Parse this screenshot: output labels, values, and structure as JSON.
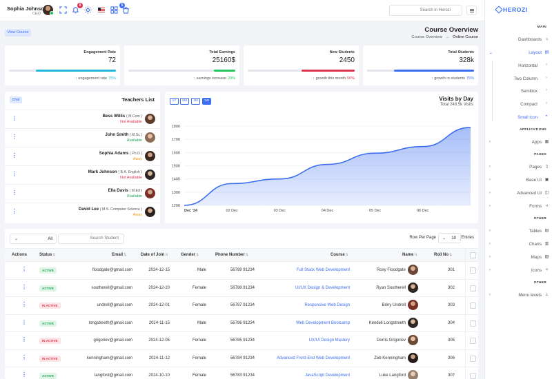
{
  "header": {
    "user_name": "Sophia Johnson",
    "user_role": "CEO",
    "notification_count": "8",
    "cart_count": "5",
    "search_placeholder": "Search in Herozi"
  },
  "sidebar": {
    "brand": "HEROZI",
    "sections": {
      "main": "MAIN",
      "applications": "APPLICATIONS",
      "pages": "PAGES",
      "other1": "OTHER",
      "other2": "OTHER"
    },
    "items": {
      "dashboards": "Dashboards",
      "layout": "Layout",
      "horizontal": "Horizontal",
      "two_column": "Two Column",
      "semibox": "Semibox",
      "compact": "Compact",
      "small_icon": "Small Icon",
      "apps": "Apps",
      "pages": "Pages",
      "base_ui": "Base UI",
      "advanced_ui": "Advanced UI",
      "forms": "Forms",
      "tables": "Tables",
      "charts": "Charts",
      "maps": "Maps",
      "icons": "Icons",
      "menu_levels": "Menu levels"
    }
  },
  "page": {
    "view_course_label": "View Course",
    "title": "Course Overview",
    "breadcrumb_parent": "Course Overview",
    "breadcrumb_separator": "→",
    "breadcrumb_current": "Online Course"
  },
  "stats": [
    {
      "label": "Engagement Rate",
      "value": "72",
      "note": "engagement rate",
      "pct": "75%",
      "color": "#22b8d9",
      "progress": 0.75
    },
    {
      "label": "Total Earnings",
      "value": "25160$",
      "note": "earnings increase",
      "pct": "20%",
      "color": "#22c55e",
      "progress": 0.2
    },
    {
      "label": "New Students",
      "value": "2450",
      "note": "growth this month",
      "pct": "50%",
      "color": "#e0344f",
      "progress": 0.5
    },
    {
      "label": "Total Students",
      "value": "328k",
      "note": "growth in students",
      "pct": "75%",
      "color": "#3a6df0",
      "progress": 0.75
    }
  ],
  "teachers": {
    "chat_label": "Chat",
    "title": "Teachers List",
    "list": [
      {
        "name": "Bess Willis",
        "degree": "( M.Com )",
        "status": "Not Available",
        "status_color": "#e0344f"
      },
      {
        "name": "John Smith",
        "degree": "( M.Sc )",
        "status": "Available",
        "status_color": "#22a05a"
      },
      {
        "name": "Sophia Adams",
        "degree": "( Ph.D )",
        "status": "Away",
        "status_color": "#e79c1a"
      },
      {
        "name": "Mark Johnson",
        "degree": "( B.A. English )",
        "status": "Not Available",
        "status_color": "#e0344f"
      },
      {
        "name": "Ella Davis",
        "degree": "( M.Ed )",
        "status": "Available",
        "status_color": "#22a05a"
      },
      {
        "name": "David Lee",
        "degree": "( M.S. Computer Science )",
        "status": "Away",
        "status_color": "#e79c1a"
      }
    ]
  },
  "visits": {
    "title": "Visits by Day",
    "subtitle": "Total 248.5k Visits",
    "ranges": [
      "1Y",
      "6M",
      "1M",
      "1W"
    ],
    "active_range": "1W"
  },
  "chart_data": {
    "type": "area",
    "title": "Visits by Day",
    "subtitle": "Total 248.5k Visits",
    "x": [
      "Dec '24",
      "02 Dec",
      "03 Dec",
      "04 Dec",
      "05 Dec",
      "06 Dec",
      "07 Dec"
    ],
    "series": [
      {
        "name": "Visits",
        "values": [
          1200,
          1365,
          1400,
          1510,
          1595,
          1645,
          1790
        ]
      }
    ],
    "yticks": [
      1200,
      1300,
      1400,
      1500,
      1600,
      1700,
      1800
    ],
    "ylim": [
      1200,
      1800
    ],
    "color": "#3a6df0"
  },
  "students_table": {
    "filter_value": "All",
    "search_placeholder": "Search Student",
    "rows_per_page_label": "Row Per Page",
    "rows_per_page_value": "10",
    "entries_label": "Entries",
    "columns": [
      "Actions",
      "Status",
      "Email",
      "Date of Join",
      "Gender",
      "Phone Number",
      "Course",
      "Name",
      "Roll No"
    ],
    "rows": [
      {
        "status": "ACTIVE",
        "email": "floodgate@gmail.com",
        "date": "2024-12-15",
        "gender": "Male",
        "phone": "56789 91234",
        "course": "Full Stack Web Development",
        "name": "Roxy Floodgate",
        "roll": "301"
      },
      {
        "status": "ACTIVE",
        "email": "southerell@gmail.com",
        "date": "2024-12-20",
        "gender": "Female",
        "phone": "56788 91234",
        "course": "UI/UX Design & Development",
        "name": "Ryan Southerell",
        "roll": "302"
      },
      {
        "status": "IN ACTIVE",
        "email": "undrell@gmail.com",
        "date": "2024-12-01",
        "gender": "Female",
        "phone": "56787 91234",
        "course": "Responsive Web Design",
        "name": "Briny Undrell",
        "roll": "303"
      },
      {
        "status": "ACTIVE",
        "email": "longstreeth@gmail.com",
        "date": "2024-11-15",
        "gender": "Male",
        "phone": "56786 91234",
        "course": "Web Development Bootcamp",
        "name": "Kendell Longstreeth",
        "roll": "304"
      },
      {
        "status": "IN ACTIVE",
        "email": "grigoriev@gmail.com",
        "date": "2024-12-05",
        "gender": "Female",
        "phone": "56785 91234",
        "course": "UX/UI Design Mastery",
        "name": "Dorris Grigoriev",
        "roll": "305"
      },
      {
        "status": "IN ACTIVE",
        "email": "kenningham@gmail.com",
        "date": "2024-11-12",
        "gender": "Female",
        "phone": "56784 91234",
        "course": "Advanced Front-End Web Development",
        "name": "Zeb Kenningham",
        "roll": "306"
      },
      {
        "status": "ACTIVE",
        "email": "langford@gmail.com",
        "date": "2024-10-10",
        "gender": "Female",
        "phone": "56783 91234",
        "course": "JavaScript Development",
        "name": "Luke Langford",
        "roll": "307"
      }
    ]
  }
}
